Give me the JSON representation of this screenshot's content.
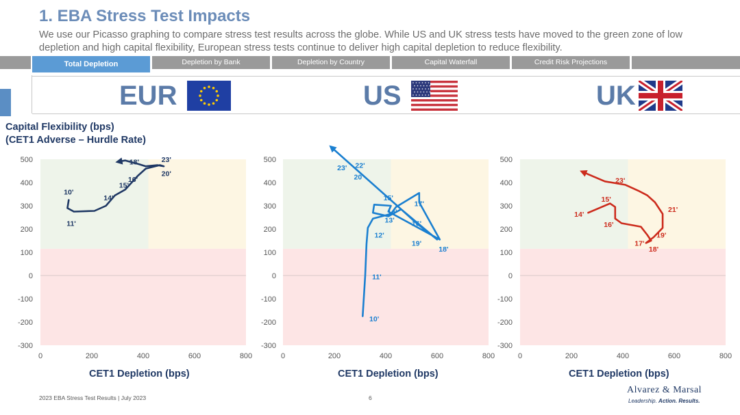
{
  "header": {
    "title": "1. EBA Stress Test Impacts",
    "subtitle": "We use our Picasso graphing to compare stress test results across the globe. While US and UK stress tests have moved to the green zone of low depletion and high capital flexibility, European stress tests continue to deliver high capital depletion to reduce flexibility."
  },
  "tabs": [
    {
      "label": "Total Depletion",
      "active": true
    },
    {
      "label": "Depletion by Bank"
    },
    {
      "label": "Depletion by Country"
    },
    {
      "label": "Capital Waterfall"
    },
    {
      "label": "Credit Risk Projections"
    }
  ],
  "regions": [
    {
      "label": "EUR",
      "flag": "eu-flag-icon"
    },
    {
      "label": "US",
      "flag": "us-flag-icon"
    },
    {
      "label": "UK",
      "flag": "uk-flag-icon"
    }
  ],
  "axes": {
    "y_title_line1": "Capital Flexibility (bps)",
    "y_title_line2": "(CET1 Adverse – Hurdle Rate)",
    "x_title": "CET1 Depletion (bps)"
  },
  "colors": {
    "eur": "#1f3864",
    "us": "#1a7fd0",
    "uk": "#cc2b1c",
    "green_zone": "#eef4ea",
    "yellow_zone": "#fdf6e3",
    "red_zone": "#fde5e5"
  },
  "chart_data": [
    {
      "type": "line",
      "name": "EUR",
      "xlabel": "CET1 Depletion (bps)",
      "ylabel": "Capital Flexibility (bps) (CET1 Adverse – Hurdle Rate)",
      "xlim": [
        0,
        800
      ],
      "ylim": [
        -300,
        500
      ],
      "xticks": [
        0,
        200,
        400,
        600,
        800
      ],
      "yticks": [
        -300,
        -200,
        -100,
        0,
        100,
        200,
        300,
        400,
        500
      ],
      "zones": {
        "green": {
          "x": [
            0,
            420
          ],
          "y": [
            115,
            500
          ]
        },
        "yellow": {
          "x": [
            420,
            800
          ],
          "y": [
            115,
            500
          ]
        },
        "red": {
          "x": [
            0,
            800
          ],
          "y": [
            -300,
            115
          ]
        }
      },
      "path": [
        [
          110,
          325
        ],
        [
          105,
          290
        ],
        [
          130,
          275
        ],
        [
          210,
          278
        ],
        [
          255,
          300
        ],
        [
          290,
          345
        ],
        [
          330,
          370
        ],
        [
          380,
          430
        ],
        [
          410,
          460
        ],
        [
          465,
          475
        ],
        [
          480,
          470
        ],
        [
          455,
          475
        ],
        [
          410,
          470
        ],
        [
          380,
          480
        ],
        [
          330,
          495
        ],
        [
          305,
          490
        ]
      ],
      "point_labels": [
        {
          "text": "10'",
          "x": 110,
          "y": 360
        },
        {
          "text": "11'",
          "x": 120,
          "y": 225
        },
        {
          "text": "14'",
          "x": 265,
          "y": 335
        },
        {
          "text": "15'",
          "x": 325,
          "y": 390
        },
        {
          "text": "16'",
          "x": 360,
          "y": 415
        },
        {
          "text": "18'",
          "x": 365,
          "y": 490
        },
        {
          "text": "23'",
          "x": 490,
          "y": 500
        },
        {
          "text": "20'",
          "x": 490,
          "y": 440
        }
      ]
    },
    {
      "type": "line",
      "name": "US",
      "xlabel": "CET1 Depletion (bps)",
      "ylabel": "",
      "xlim": [
        0,
        800
      ],
      "ylim": [
        -300,
        500
      ],
      "xticks": [
        0,
        200,
        400,
        600,
        800
      ],
      "yticks": [
        -300,
        -200,
        -100,
        0,
        100,
        200,
        300,
        400,
        500
      ],
      "zones": {
        "green": {
          "x": [
            0,
            420
          ],
          "y": [
            115,
            500
          ]
        },
        "yellow": {
          "x": [
            420,
            800
          ],
          "y": [
            115,
            500
          ]
        },
        "red": {
          "x": [
            0,
            800
          ],
          "y": [
            -300,
            115
          ]
        }
      },
      "path": [
        [
          310,
          -175
        ],
        [
          320,
          0
        ],
        [
          325,
          135
        ],
        [
          330,
          205
        ],
        [
          350,
          245
        ],
        [
          420,
          265
        ],
        [
          440,
          295
        ],
        [
          530,
          355
        ],
        [
          530,
          315
        ],
        [
          610,
          155
        ],
        [
          410,
          275
        ],
        [
          420,
          300
        ],
        [
          355,
          305
        ],
        [
          350,
          270
        ],
        [
          410,
          255
        ],
        [
          460,
          285
        ],
        [
          600,
          155
        ],
        [
          520,
          225
        ],
        [
          460,
          285
        ],
        [
          190,
          550
        ]
      ],
      "point_labels": [
        {
          "text": "10'",
          "x": 355,
          "y": -185
        },
        {
          "text": "11'",
          "x": 365,
          "y": -5
        },
        {
          "text": "12'",
          "x": 375,
          "y": 175
        },
        {
          "text": "13'",
          "x": 415,
          "y": 240
        },
        {
          "text": "14'",
          "x": 425,
          "y": 275
        },
        {
          "text": "15'",
          "x": 410,
          "y": 335
        },
        {
          "text": "16'",
          "x": 520,
          "y": 225
        },
        {
          "text": "17'",
          "x": 530,
          "y": 310
        },
        {
          "text": "18'",
          "x": 625,
          "y": 115
        },
        {
          "text": "19'",
          "x": 520,
          "y": 140
        },
        {
          "text": "20'",
          "x": 295,
          "y": 425
        },
        {
          "text": "22'",
          "x": 300,
          "y": 475
        },
        {
          "text": "23'",
          "x": 230,
          "y": 465
        }
      ]
    },
    {
      "type": "line",
      "name": "UK",
      "xlabel": "CET1 Depletion (bps)",
      "ylabel": "",
      "xlim": [
        0,
        800
      ],
      "ylim": [
        -300,
        500
      ],
      "xticks": [
        0,
        200,
        400,
        600,
        800
      ],
      "yticks": [
        -300,
        -200,
        -100,
        0,
        100,
        200,
        300,
        400,
        500
      ],
      "zones": {
        "green": {
          "x": [
            0,
            420
          ],
          "y": [
            115,
            500
          ]
        },
        "yellow": {
          "x": [
            420,
            800
          ],
          "y": [
            115,
            500
          ]
        },
        "red": {
          "x": [
            0,
            800
          ],
          "y": [
            -300,
            115
          ]
        }
      },
      "path": [
        [
          265,
          270
        ],
        [
          350,
          310
        ],
        [
          370,
          295
        ],
        [
          370,
          245
        ],
        [
          395,
          225
        ],
        [
          470,
          210
        ],
        [
          495,
          175
        ],
        [
          510,
          150
        ],
        [
          490,
          140
        ],
        [
          520,
          165
        ],
        [
          555,
          205
        ],
        [
          555,
          265
        ],
        [
          525,
          315
        ],
        [
          495,
          345
        ],
        [
          460,
          365
        ],
        [
          410,
          390
        ],
        [
          330,
          405
        ],
        [
          245,
          445
        ]
      ],
      "point_labels": [
        {
          "text": "14'",
          "x": 230,
          "y": 265
        },
        {
          "text": "15'",
          "x": 335,
          "y": 330
        },
        {
          "text": "16'",
          "x": 345,
          "y": 220
        },
        {
          "text": "17'",
          "x": 465,
          "y": 140
        },
        {
          "text": "18'",
          "x": 520,
          "y": 115
        },
        {
          "text": "19'",
          "x": 550,
          "y": 175
        },
        {
          "text": "21'",
          "x": 595,
          "y": 285
        },
        {
          "text": "23'",
          "x": 390,
          "y": 410
        }
      ]
    }
  ],
  "footer": {
    "report": "2023 EBA Stress Test Results | July 2023",
    "page": "6",
    "brand": "Alvarez & Marsal",
    "tagline_1": "Leadership.",
    "tagline_2": "Action.",
    "tagline_3": "Results."
  }
}
